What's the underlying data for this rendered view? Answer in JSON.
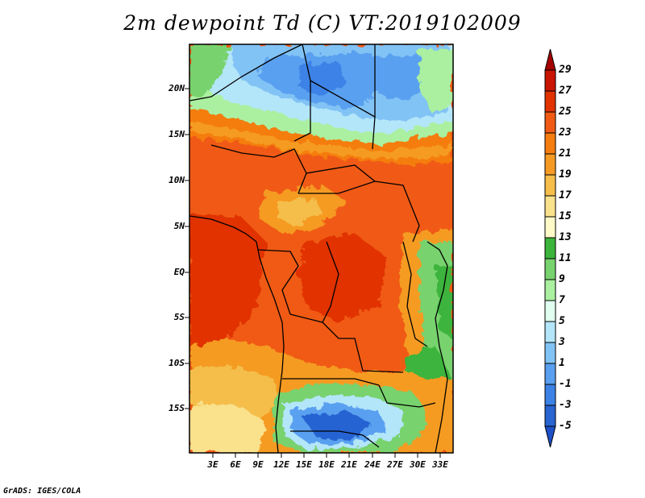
{
  "title": "2m dewpoint Td (C) VT:2019102009",
  "footer": "GrADS: IGES/COLA",
  "lat_labels": [
    "20N",
    "15N",
    "10N",
    "5N",
    "EQ",
    "5S",
    "10S",
    "15S"
  ],
  "lon_labels": [
    "3E",
    "6E",
    "9E",
    "12E",
    "15E",
    "18E",
    "21E",
    "24E",
    "27E",
    "30E",
    "33E"
  ],
  "colorbar": {
    "labels": [
      "29",
      "27",
      "25",
      "23",
      "21",
      "19",
      "17",
      "15",
      "13",
      "11",
      "9",
      "7",
      "5",
      "3",
      "1",
      "-1",
      "-3",
      "-5"
    ],
    "colors": [
      "#a50000",
      "#c81400",
      "#e13200",
      "#f05a14",
      "#f57d0f",
      "#f59b23",
      "#f5be4b",
      "#fae18c",
      "#fffac8",
      "#3cb43c",
      "#78d26e",
      "#aaf0a0",
      "#e1fff0",
      "#b4e6fa",
      "#82c3f5",
      "#5aa0f0",
      "#3c82e6",
      "#2864d2",
      "#1e50c8"
    ]
  },
  "map": {
    "region": "Central Africa",
    "lon_range_deg": [
      0,
      35
    ],
    "lat_range_deg": [
      -20,
      25
    ],
    "variable": "2m dewpoint",
    "units": "C"
  }
}
